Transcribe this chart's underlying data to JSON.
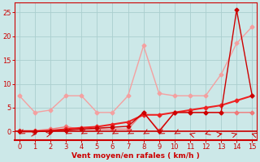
{
  "xlabel": "Vent moyen/en rafales ( km/h )",
  "x": [
    0,
    1,
    2,
    3,
    4,
    5,
    6,
    7,
    8,
    9,
    10,
    11,
    12,
    13,
    14,
    15
  ],
  "series": [
    {
      "label": "line1_light_pink",
      "color": "#f4a0a0",
      "linewidth": 1.0,
      "marker": "D",
      "markersize": 2.5,
      "y": [
        7.5,
        4.0,
        4.5,
        7.5,
        7.5,
        4.0,
        4.0,
        7.5,
        18.0,
        8.0,
        7.5,
        7.5,
        7.5,
        12.0,
        18.5,
        22.0
      ]
    },
    {
      "label": "line2_medium_pink",
      "color": "#f07878",
      "linewidth": 1.0,
      "marker": "D",
      "markersize": 2.5,
      "y": [
        0.2,
        0.2,
        0.5,
        1.0,
        0.5,
        0.5,
        0.5,
        0.5,
        4.0,
        0.2,
        4.0,
        4.0,
        4.0,
        4.0,
        4.0,
        4.0
      ]
    },
    {
      "label": "line3_bright_red",
      "color": "#ee2222",
      "linewidth": 1.5,
      "marker": "D",
      "markersize": 2.5,
      "y": [
        0.0,
        0.0,
        0.2,
        0.5,
        0.8,
        1.0,
        1.5,
        2.0,
        3.5,
        3.5,
        4.0,
        4.5,
        5.0,
        5.5,
        6.5,
        7.5
      ]
    },
    {
      "label": "line4_dark_red",
      "color": "#cc0000",
      "linewidth": 1.0,
      "marker": "D",
      "markersize": 2.5,
      "y": [
        0.0,
        0.0,
        0.1,
        0.3,
        0.5,
        0.7,
        0.9,
        1.1,
        4.0,
        0.0,
        4.0,
        4.0,
        4.0,
        4.0,
        25.5,
        7.5
      ]
    }
  ],
  "xlim": [
    0,
    15
  ],
  "ylim": [
    0,
    27
  ],
  "yticks": [
    0,
    5,
    10,
    15,
    20,
    25
  ],
  "xticks": [
    0,
    1,
    2,
    3,
    4,
    5,
    6,
    7,
    8,
    9,
    10,
    11,
    12,
    13,
    14,
    15
  ],
  "bg_color": "#cce8e8",
  "grid_color": "#aacece",
  "tick_color": "#cc0000",
  "label_color": "#cc0000",
  "spine_color": "#cc0000",
  "arrow_angles": [
    210,
    90,
    60,
    210,
    210,
    210,
    210,
    210,
    210,
    210,
    210,
    315,
    225,
    60,
    45,
    315
  ]
}
